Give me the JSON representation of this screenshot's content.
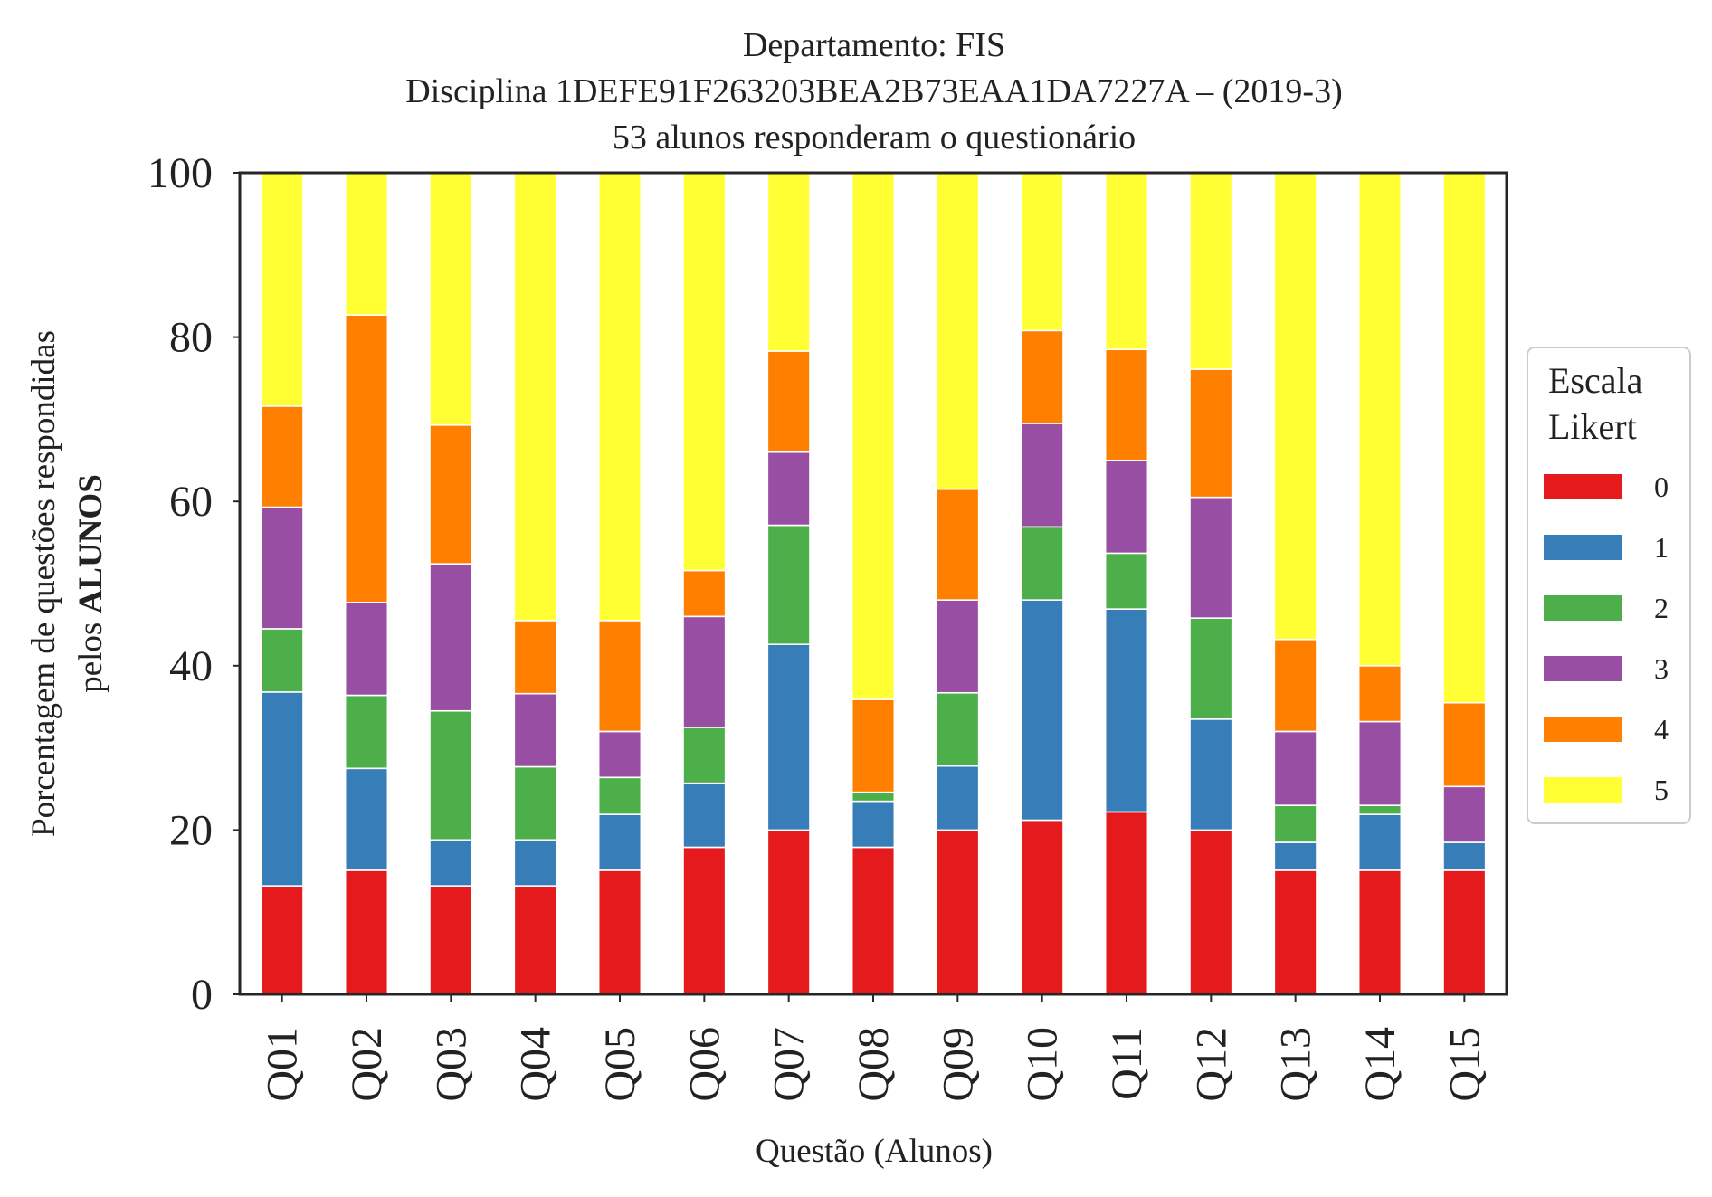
{
  "chart_data": {
    "type": "bar",
    "stacked": true,
    "title_lines": [
      "Departamento: FIS",
      "Disciplina 1DEFE91F263203BEA2B73EAA1DA7227A – (2019-3)",
      "53 alunos responderam o questionário"
    ],
    "xlabel": "Questão (Alunos)",
    "ylabel_line1": "Porcentagem de questões respondidas",
    "ylabel_line2_prefix": "pelos ",
    "ylabel_line2_bold": "ALUNOS",
    "ylim": [
      0,
      100
    ],
    "yticks": [
      "0",
      "20",
      "40",
      "60",
      "80",
      "100"
    ],
    "grid": false,
    "categories": [
      "Q01",
      "Q02",
      "Q03",
      "Q04",
      "Q05",
      "Q06",
      "Q07",
      "Q08",
      "Q09",
      "Q10",
      "Q11",
      "Q12",
      "Q13",
      "Q14",
      "Q15"
    ],
    "legend": {
      "title_line1": "Escala",
      "title_line2": "Likert",
      "position": "center-right"
    },
    "series": [
      {
        "name": "0",
        "color": "#e41a1c",
        "values": [
          13.2,
          15.1,
          13.2,
          13.2,
          15.1,
          17.9,
          20.0,
          17.9,
          20.0,
          21.2,
          22.2,
          20.0,
          15.1,
          15.1,
          15.1
        ]
      },
      {
        "name": "1",
        "color": "#377eb8",
        "values": [
          23.6,
          12.4,
          5.6,
          5.6,
          6.8,
          7.8,
          22.6,
          5.6,
          7.8,
          26.8,
          24.7,
          13.5,
          3.4,
          6.8,
          3.4
        ]
      },
      {
        "name": "2",
        "color": "#4daf4a",
        "values": [
          7.7,
          8.9,
          15.7,
          8.9,
          4.5,
          6.8,
          14.5,
          1.1,
          8.9,
          8.9,
          6.8,
          12.3,
          4.5,
          1.1,
          0
        ]
      },
      {
        "name": "3",
        "color": "#984ea3",
        "values": [
          14.8,
          11.3,
          17.9,
          8.9,
          5.6,
          13.5,
          8.9,
          0,
          11.3,
          12.6,
          11.3,
          14.7,
          9.0,
          10.2,
          6.8
        ]
      },
      {
        "name": "4",
        "color": "#ff7f00",
        "values": [
          12.3,
          35.0,
          16.9,
          8.9,
          13.5,
          5.6,
          12.3,
          11.3,
          13.5,
          11.3,
          13.5,
          15.6,
          11.2,
          6.8,
          10.2
        ]
      },
      {
        "name": "5",
        "color": "#ffff33",
        "values": [
          28.4,
          17.3,
          30.7,
          54.5,
          54.5,
          48.4,
          21.7,
          64.1,
          38.5,
          19.2,
          21.5,
          23.9,
          56.8,
          60.0,
          64.5
        ]
      }
    ]
  }
}
